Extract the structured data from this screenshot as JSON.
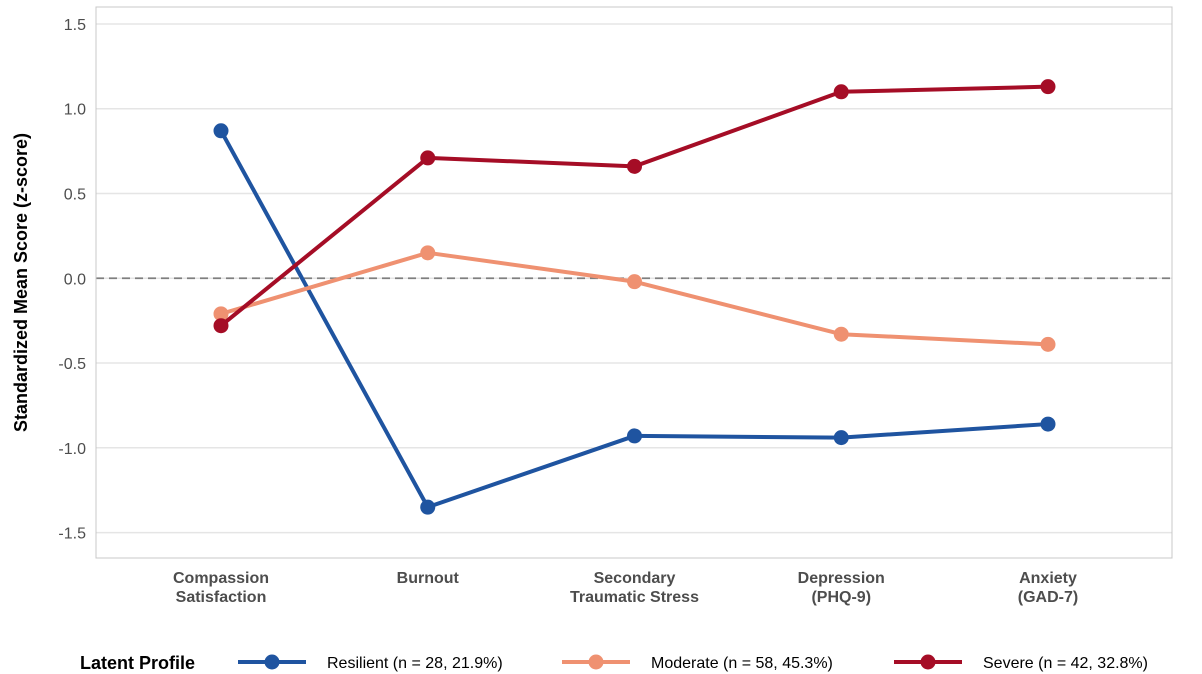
{
  "chart_data": {
    "type": "line",
    "ylabel": "Standardized Mean Score (z-score)",
    "xlabel": "",
    "title": "",
    "categories": [
      [
        "Compassion",
        "Satisfaction"
      ],
      [
        "Burnout"
      ],
      [
        "Secondary",
        "Traumatic Stress"
      ],
      [
        "Depression",
        "(PHQ-9)"
      ],
      [
        "Anxiety",
        "(GAD-7)"
      ]
    ],
    "ylim": [
      -1.65,
      1.6
    ],
    "yticks": [
      1.5,
      1.0,
      0.5,
      0.0,
      -0.5,
      -1.0,
      -1.5
    ],
    "ytick_labels": [
      "1.5",
      "1.0",
      "0.5",
      "0.0",
      "-0.5",
      "-1.0",
      "-1.5"
    ],
    "reference_line": {
      "y": 0.0,
      "style": "dashed",
      "color": "#7f7f7f"
    },
    "grid": {
      "horizontal": true,
      "vertical": false,
      "color": "#e5e5e5"
    },
    "legend": {
      "title": "Latent Profile",
      "position": "bottom"
    },
    "series": [
      {
        "name": "Resilient (n = 28, 21.9%)",
        "color": "#1f54a0",
        "values": [
          0.87,
          -1.35,
          -0.93,
          -0.94,
          -0.86
        ]
      },
      {
        "name": "Moderate (n = 58, 45.3%)",
        "color": "#ef9171",
        "values": [
          -0.21,
          0.15,
          -0.02,
          -0.33,
          -0.39
        ]
      },
      {
        "name": "Severe (n = 42, 32.8%)",
        "color": "#a50d26",
        "values": [
          -0.28,
          0.71,
          0.66,
          1.1,
          1.13
        ]
      }
    ]
  }
}
